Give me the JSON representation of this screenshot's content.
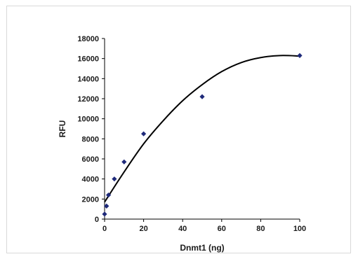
{
  "chart_data": {
    "type": "scatter",
    "xlabel": "Dnmt1 (ng)",
    "ylabel": "RFU",
    "xlim": [
      0,
      100
    ],
    "ylim": [
      0,
      18000
    ],
    "x_ticks": [
      "0",
      "20",
      "40",
      "60",
      "80",
      "100"
    ],
    "y_ticks": [
      "0",
      "2000",
      "4000",
      "6000",
      "8000",
      "10000",
      "12000",
      "14000",
      "16000",
      "18000"
    ],
    "grid": false,
    "legend": "none",
    "marker_color": "#1f2a7a",
    "line_color": "#000000",
    "series": [
      {
        "points": [
          {
            "x": 0,
            "y": 500
          },
          {
            "x": 1,
            "y": 1300
          },
          {
            "x": 2,
            "y": 2400
          },
          {
            "x": 5,
            "y": 4000
          },
          {
            "x": 10,
            "y": 5700
          },
          {
            "x": 20,
            "y": 8500
          },
          {
            "x": 50,
            "y": 12200
          },
          {
            "x": 100,
            "y": 16300
          }
        ]
      }
    ],
    "trendline": {
      "type": "polynomial",
      "points": [
        {
          "x": 0,
          "y": 1700
        },
        {
          "x": 10,
          "y": 4700
        },
        {
          "x": 20,
          "y": 7500
        },
        {
          "x": 30,
          "y": 9800
        },
        {
          "x": 40,
          "y": 11800
        },
        {
          "x": 50,
          "y": 13400
        },
        {
          "x": 60,
          "y": 14700
        },
        {
          "x": 70,
          "y": 15600
        },
        {
          "x": 80,
          "y": 16100
        },
        {
          "x": 90,
          "y": 16300
        },
        {
          "x": 100,
          "y": 16250
        }
      ]
    }
  }
}
